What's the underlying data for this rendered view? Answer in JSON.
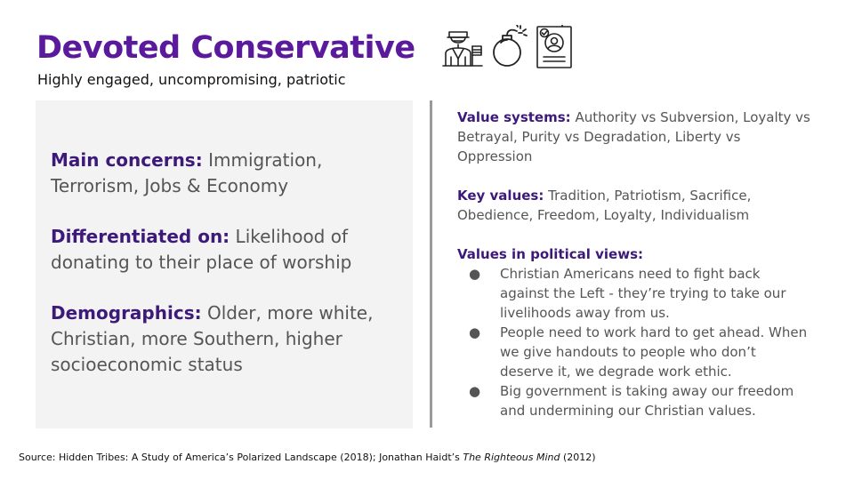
{
  "header": {
    "title": "Devoted Conservative",
    "subtitle": "Highly engaged, uncompromising, patriotic"
  },
  "icons": [
    "soldier-with-flag-icon",
    "bomb-icon",
    "id-card-check-icon"
  ],
  "colors": {
    "title": "#5b1a9c",
    "label": "#3d1a7a",
    "body_text": "#555555",
    "panel_background": "#f3f3f3",
    "divider": "#9a9a9a"
  },
  "left_panel": {
    "concerns_label": "Main concerns:",
    "concerns_value": " Immigration, Terrorism, Jobs & Economy",
    "differentiated_label": "Differentiated on:",
    "differentiated_value": " Likelihood of donating to their place of worship",
    "demographics_label": "Demographics:",
    "demographics_value": " Older, more white, Christian, more Southern, higher socioeconomic status"
  },
  "right_panel": {
    "value_systems_label": "Value systems:",
    "value_systems_value": " Authority vs Subversion, Loyalty vs Betrayal, Purity vs Degradation, Liberty vs Oppression",
    "key_values_label": "Key values:",
    "key_values_value": " Tradition, Patriotism, Sacrifice, Obedience, Freedom, Loyalty, Individualism",
    "political_views_heading": "Values in political views:",
    "bullet_char": "●",
    "political_views": [
      "Christian Americans need to fight back against the Left - they’re trying to take our livelihoods away from us.",
      "People need to work hard to get ahead. When we give handouts to people who don’t deserve it, we degrade work ethic.",
      "Big government is taking away our freedom and undermining our Christian values."
    ]
  },
  "source": {
    "prefix": "Source: Hidden Tribes: A Study of America’s Polarized Landscape (2018); Jonathan Haidt’s ",
    "book_title": "The Righteous Mind",
    "suffix": " (2012)"
  }
}
